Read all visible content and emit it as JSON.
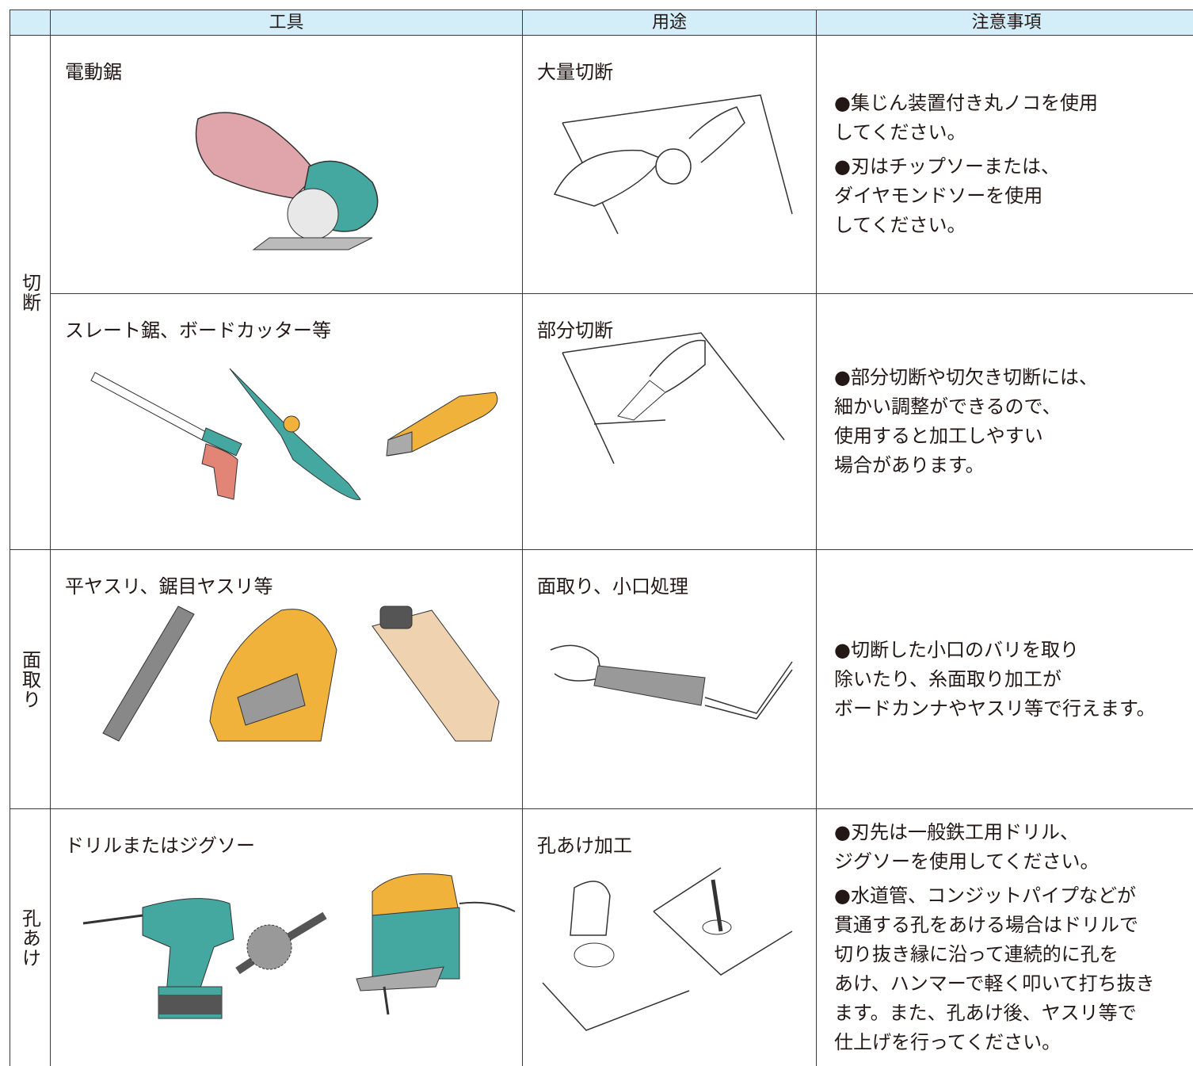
{
  "table": {
    "header": [
      "工具",
      "用途",
      "注意事項"
    ],
    "groups": [
      {
        "label": "切断",
        "rows": [
          {
            "tool": "電動鋸",
            "use": "大量切断",
            "notes": [
              [
                "●集じん装置付き丸ノコを使用",
                "してください。"
              ],
              [
                "●刃はチップソーまたは、",
                "ダイヤモンドソーを使用",
                "してください。"
              ]
            ]
          },
          {
            "tool": "スレート鋸、ボードカッター等",
            "use": "部分切断",
            "notes": [
              [
                "●部分切断や切欠き切断には、",
                "細かい調整ができるので、",
                "使用すると加工しやすい",
                "場合があります。"
              ]
            ]
          }
        ]
      },
      {
        "label": "面取り",
        "rows": [
          {
            "tool": "平ヤスリ、鋸目ヤスリ等",
            "use": "面取り、小口処理",
            "notes": [
              [
                "●切断した小口のバリを取り",
                "除いたり、糸面取り加工が",
                "ボードカンナやヤスリ等で行えます。"
              ]
            ]
          }
        ]
      },
      {
        "label": "孔あけ",
        "rows": [
          {
            "tool": "ドリルまたはジグソー",
            "use": "孔あけ加工",
            "notes": [
              [
                "●刃先は一般鉄工用ドリル、",
                "ジグソーを使用してください。"
              ],
              [
                "●水道管、コンジットパイプなどが",
                "貫通する孔をあける場合はドリルで",
                "切り抜き縁に沿って連続的に孔を",
                "あけ、ハンマーで軽く叩いて打ち抜き",
                "ます。また、孔あけ後、ヤスリ等で",
                "仕上げを行ってください。"
              ]
            ]
          }
        ]
      }
    ]
  }
}
